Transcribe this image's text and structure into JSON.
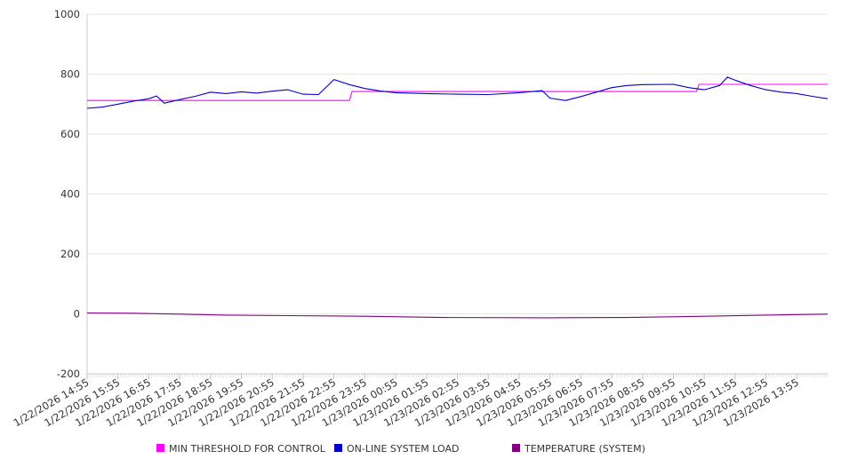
{
  "chart_data": {
    "type": "line",
    "title": "",
    "xlabel": "",
    "ylabel": "",
    "ylim": [
      -200,
      1000
    ],
    "yticks": [
      -200,
      0,
      200,
      400,
      600,
      800,
      1000
    ],
    "grid": true,
    "legend_position": "bottom",
    "x_tick_labels": [
      "1/22/2026 14:55",
      "1/22/2026 15:55",
      "1/22/2026 16:55",
      "1/22/2026 17:55",
      "1/22/2026 18:55",
      "1/22/2026 19:55",
      "1/22/2026 20:55",
      "1/22/2026 21:55",
      "1/22/2026 22:55",
      "1/22/2026 23:55",
      "1/23/2026 00:55",
      "1/23/2026 01:55",
      "1/23/2026 02:55",
      "1/23/2026 03:55",
      "1/23/2026 04:55",
      "1/23/2026 05:55",
      "1/23/2026 06:55",
      "1/23/2026 07:55",
      "1/23/2026 08:55",
      "1/23/2026 09:55",
      "1/23/2026 10:55",
      "1/23/2026 11:55",
      "1/23/2026 12:55",
      "1/23/2026 13:55"
    ],
    "x_range": [
      "1/22/2026 14:55",
      "1/23/2026 14:55"
    ],
    "series": [
      {
        "name": "MIN THRESHOLD FOR CONTROL",
        "color": "#ff00ff",
        "points": [
          [
            "1/22/2026 14:55",
            712
          ],
          [
            "1/22/2026 23:25",
            712
          ],
          [
            "1/22/2026 23:30",
            742
          ],
          [
            "1/23/2026 10:40",
            742
          ],
          [
            "1/23/2026 10:45",
            766
          ],
          [
            "1/23/2026 14:55",
            766
          ]
        ]
      },
      {
        "name": "ON-LINE SYSTEM LOAD",
        "color": "#0000cc",
        "points": [
          [
            "1/22/2026 14:55",
            686
          ],
          [
            "1/22/2026 15:25",
            690
          ],
          [
            "1/22/2026 15:55",
            700
          ],
          [
            "1/22/2026 16:25",
            710
          ],
          [
            "1/22/2026 16:55",
            718
          ],
          [
            "1/22/2026 17:10",
            727
          ],
          [
            "1/22/2026 17:25",
            703
          ],
          [
            "1/22/2026 17:55",
            715
          ],
          [
            "1/22/2026 18:25",
            726
          ],
          [
            "1/22/2026 18:55",
            740
          ],
          [
            "1/22/2026 19:25",
            735
          ],
          [
            "1/22/2026 19:55",
            741
          ],
          [
            "1/22/2026 20:25",
            737
          ],
          [
            "1/22/2026 20:55",
            743
          ],
          [
            "1/22/2026 21:25",
            748
          ],
          [
            "1/22/2026 21:55",
            733
          ],
          [
            "1/22/2026 22:25",
            732
          ],
          [
            "1/22/2026 22:55",
            782
          ],
          [
            "1/22/2026 23:25",
            765
          ],
          [
            "1/22/2026 23:55",
            752
          ],
          [
            "1/23/2026 00:25",
            744
          ],
          [
            "1/23/2026 00:55",
            738
          ],
          [
            "1/23/2026 01:55",
            735
          ],
          [
            "1/23/2026 02:55",
            733
          ],
          [
            "1/23/2026 03:55",
            732
          ],
          [
            "1/23/2026 04:55",
            738
          ],
          [
            "1/23/2026 05:40",
            745
          ],
          [
            "1/23/2026 05:55",
            720
          ],
          [
            "1/23/2026 06:25",
            712
          ],
          [
            "1/23/2026 06:55",
            725
          ],
          [
            "1/23/2026 07:25",
            740
          ],
          [
            "1/23/2026 07:55",
            755
          ],
          [
            "1/23/2026 08:25",
            762
          ],
          [
            "1/23/2026 08:55",
            765
          ],
          [
            "1/23/2026 09:55",
            766
          ],
          [
            "1/23/2026 10:25",
            755
          ],
          [
            "1/23/2026 10:55",
            748
          ],
          [
            "1/23/2026 11:25",
            762
          ],
          [
            "1/23/2026 11:40",
            790
          ],
          [
            "1/23/2026 11:55",
            780
          ],
          [
            "1/23/2026 12:25",
            762
          ],
          [
            "1/23/2026 12:55",
            748
          ],
          [
            "1/23/2026 13:25",
            740
          ],
          [
            "1/23/2026 13:55",
            735
          ],
          [
            "1/23/2026 14:25",
            726
          ],
          [
            "1/23/2026 14:55",
            718
          ]
        ]
      },
      {
        "name": "TEMPERATURE (SYSTEM)",
        "color": "#800080",
        "points": [
          [
            "1/22/2026 14:55",
            3
          ],
          [
            "1/22/2026 16:25",
            2
          ],
          [
            "1/22/2026 17:55",
            -1
          ],
          [
            "1/22/2026 19:25",
            -4
          ],
          [
            "1/22/2026 21:25",
            -6
          ],
          [
            "1/22/2026 23:55",
            -8
          ],
          [
            "1/23/2026 02:25",
            -12
          ],
          [
            "1/23/2026 05:55",
            -13
          ],
          [
            "1/23/2026 08:25",
            -12
          ],
          [
            "1/23/2026 10:55",
            -8
          ],
          [
            "1/23/2026 12:55",
            -4
          ],
          [
            "1/23/2026 14:55",
            -1
          ]
        ]
      }
    ]
  }
}
